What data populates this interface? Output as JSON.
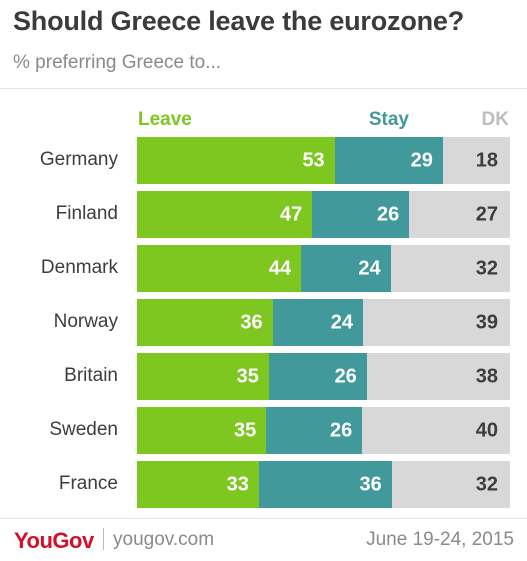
{
  "header": {
    "title": "Should Greece leave the eurozone?",
    "subtitle": "% preferring Greece to..."
  },
  "legend": {
    "leave": "Leave",
    "stay": "Stay",
    "dk": "DK"
  },
  "colors": {
    "leave": "#7ec620",
    "stay": "#41999b",
    "dk": "#d8d8d8",
    "brand": "#d3102a"
  },
  "chart_data": {
    "type": "bar",
    "stacked": true,
    "orientation": "horizontal",
    "title": "Should Greece leave the eurozone?",
    "subtitle": "% preferring Greece to...",
    "categories": [
      "Germany",
      "Finland",
      "Denmark",
      "Norway",
      "Britain",
      "Sweden",
      "France"
    ],
    "series": [
      {
        "name": "Leave",
        "values": [
          53,
          47,
          44,
          36,
          35,
          35,
          33
        ]
      },
      {
        "name": "Stay",
        "values": [
          29,
          26,
          24,
          24,
          26,
          26,
          36
        ]
      },
      {
        "name": "DK",
        "values": [
          18,
          27,
          32,
          39,
          38,
          40,
          32
        ]
      }
    ],
    "xlim": [
      0,
      100
    ],
    "legend_position": "top",
    "grid": false
  },
  "footer": {
    "logo": "YouGov",
    "site": "yougov.com",
    "date": "June 19-24, 2015"
  }
}
